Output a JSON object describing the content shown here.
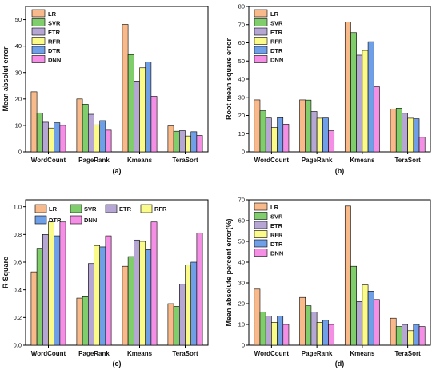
{
  "colors": {
    "LR": "#f8b98b",
    "SVR": "#7fce6b",
    "ETR": "#b5a6d4",
    "RFR": "#fbfb8a",
    "DTR": "#6f9fe6",
    "DNN": "#f58fe6"
  },
  "chart_data": [
    {
      "type": "bar",
      "panel_tag": "(a)",
      "ylabel": "Mean absolut error",
      "categories": [
        "WordCount",
        "PageRank",
        "Kmeans",
        "TeraSort"
      ],
      "ylim": [
        0,
        55
      ],
      "yticks": [
        0,
        10,
        20,
        30,
        40,
        50
      ],
      "legend_layout": "vertical",
      "series": [
        {
          "name": "LR",
          "values": [
            22.7,
            20.0,
            48.2,
            9.8
          ]
        },
        {
          "name": "SVR",
          "values": [
            14.7,
            18.0,
            36.8,
            7.8
          ]
        },
        {
          "name": "ETR",
          "values": [
            11.2,
            14.2,
            26.8,
            8.0
          ]
        },
        {
          "name": "RFR",
          "values": [
            9.0,
            10.2,
            31.8,
            6.0
          ]
        },
        {
          "name": "DTR",
          "values": [
            11.0,
            11.8,
            34.0,
            7.6
          ]
        },
        {
          "name": "DNN",
          "values": [
            10.0,
            8.2,
            21.0,
            6.2
          ]
        }
      ]
    },
    {
      "type": "bar",
      "panel_tag": "(b)",
      "ylabel": "Root mean square error",
      "categories": [
        "WordCount",
        "PageRank",
        "Kmeans",
        "TeraSort"
      ],
      "ylim": [
        0,
        80
      ],
      "yticks": [
        0,
        10,
        20,
        30,
        40,
        50,
        60,
        70,
        80
      ],
      "legend_layout": "vertical",
      "series": [
        {
          "name": "LR",
          "values": [
            28.6,
            28.6,
            71.4,
            23.6
          ]
        },
        {
          "name": "SVR",
          "values": [
            22.6,
            28.5,
            65.6,
            24.0
          ]
        },
        {
          "name": "ETR",
          "values": [
            18.6,
            22.2,
            53.2,
            21.2
          ]
        },
        {
          "name": "RFR",
          "values": [
            13.4,
            18.5,
            55.8,
            18.5
          ]
        },
        {
          "name": "DTR",
          "values": [
            18.8,
            18.6,
            60.6,
            18.2
          ]
        },
        {
          "name": "DNN",
          "values": [
            15.2,
            11.6,
            35.8,
            8.0
          ]
        }
      ]
    },
    {
      "type": "bar",
      "panel_tag": "(c)",
      "ylabel": "R-Square",
      "categories": [
        "WordCount",
        "PageRank",
        "Kmeans",
        "TeraSort"
      ],
      "ylim": [
        0,
        1.05
      ],
      "yticks": [
        0.0,
        0.2,
        0.4,
        0.6,
        0.8,
        1.0
      ],
      "legend_layout": "grid",
      "series": [
        {
          "name": "LR",
          "values": [
            0.53,
            0.34,
            0.57,
            0.3
          ]
        },
        {
          "name": "SVR",
          "values": [
            0.7,
            0.35,
            0.64,
            0.28
          ]
        },
        {
          "name": "ETR",
          "values": [
            0.8,
            0.59,
            0.76,
            0.44
          ]
        },
        {
          "name": "RFR",
          "values": [
            0.89,
            0.72,
            0.75,
            0.58
          ]
        },
        {
          "name": "DTR",
          "values": [
            0.79,
            0.71,
            0.69,
            0.6
          ]
        },
        {
          "name": "DNN",
          "values": [
            0.89,
            0.79,
            0.89,
            0.81
          ]
        }
      ]
    },
    {
      "type": "bar",
      "panel_tag": "(d)",
      "ylabel": "Mean absolute percent error(%)",
      "categories": [
        "WordCount",
        "PageRank",
        "Kmeans",
        "TeraSort"
      ],
      "ylim": [
        0,
        70
      ],
      "yticks": [
        0,
        10,
        20,
        30,
        40,
        50,
        60,
        70
      ],
      "legend_layout": "vertical",
      "series": [
        {
          "name": "LR",
          "values": [
            27.0,
            23.0,
            67.0,
            13.0
          ]
        },
        {
          "name": "SVR",
          "values": [
            16.0,
            19.0,
            38.0,
            9.0
          ]
        },
        {
          "name": "ETR",
          "values": [
            14.0,
            16.0,
            21.0,
            10.0
          ]
        },
        {
          "name": "RFR",
          "values": [
            11.0,
            11.0,
            29.0,
            7.0
          ]
        },
        {
          "name": "DTR",
          "values": [
            14.0,
            12.0,
            26.0,
            10.0
          ]
        },
        {
          "name": "DNN",
          "values": [
            10.0,
            10.0,
            22.0,
            9.0
          ]
        }
      ]
    }
  ]
}
